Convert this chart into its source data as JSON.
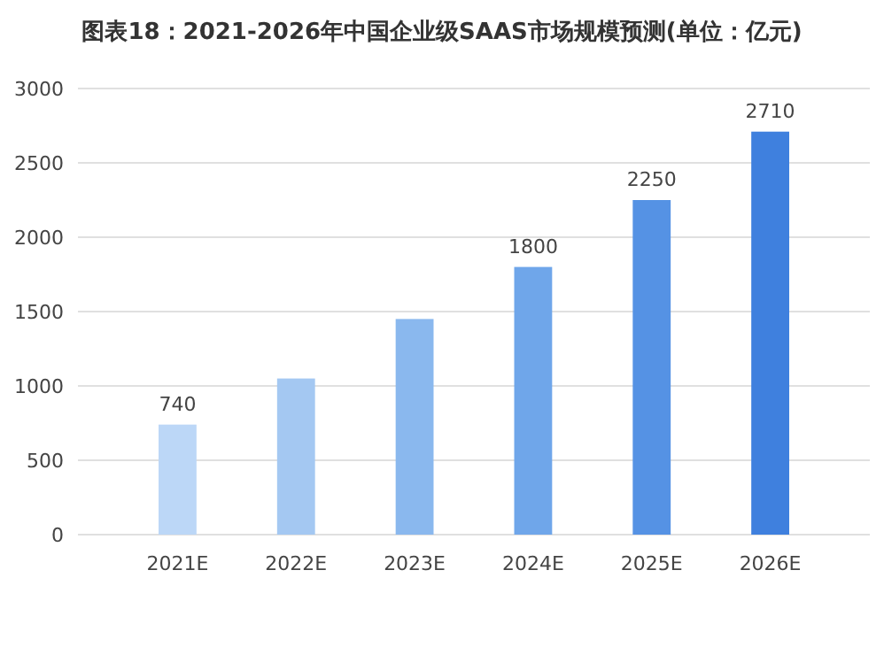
{
  "chart_data": {
    "type": "bar",
    "title": "图表18：2021-2026年中国企业级SAAS市场规模预测(单位：亿元)",
    "categories": [
      "2021E",
      "2022E",
      "2023E",
      "2024E",
      "2025E",
      "2026E"
    ],
    "values": [
      740,
      1050,
      1450,
      1800,
      2250,
      2710
    ],
    "value_labels": [
      "740",
      null,
      null,
      "1800",
      "2250",
      "2710"
    ],
    "colors": [
      "#bcd7f7",
      "#a4c8f2",
      "#8ab8ee",
      "#6fa6ea",
      "#5592e4",
      "#3f80de"
    ],
    "ylim": [
      0,
      3000
    ],
    "yticks": [
      0,
      500,
      1000,
      1500,
      2000,
      2500,
      3000
    ],
    "grid": "y"
  }
}
